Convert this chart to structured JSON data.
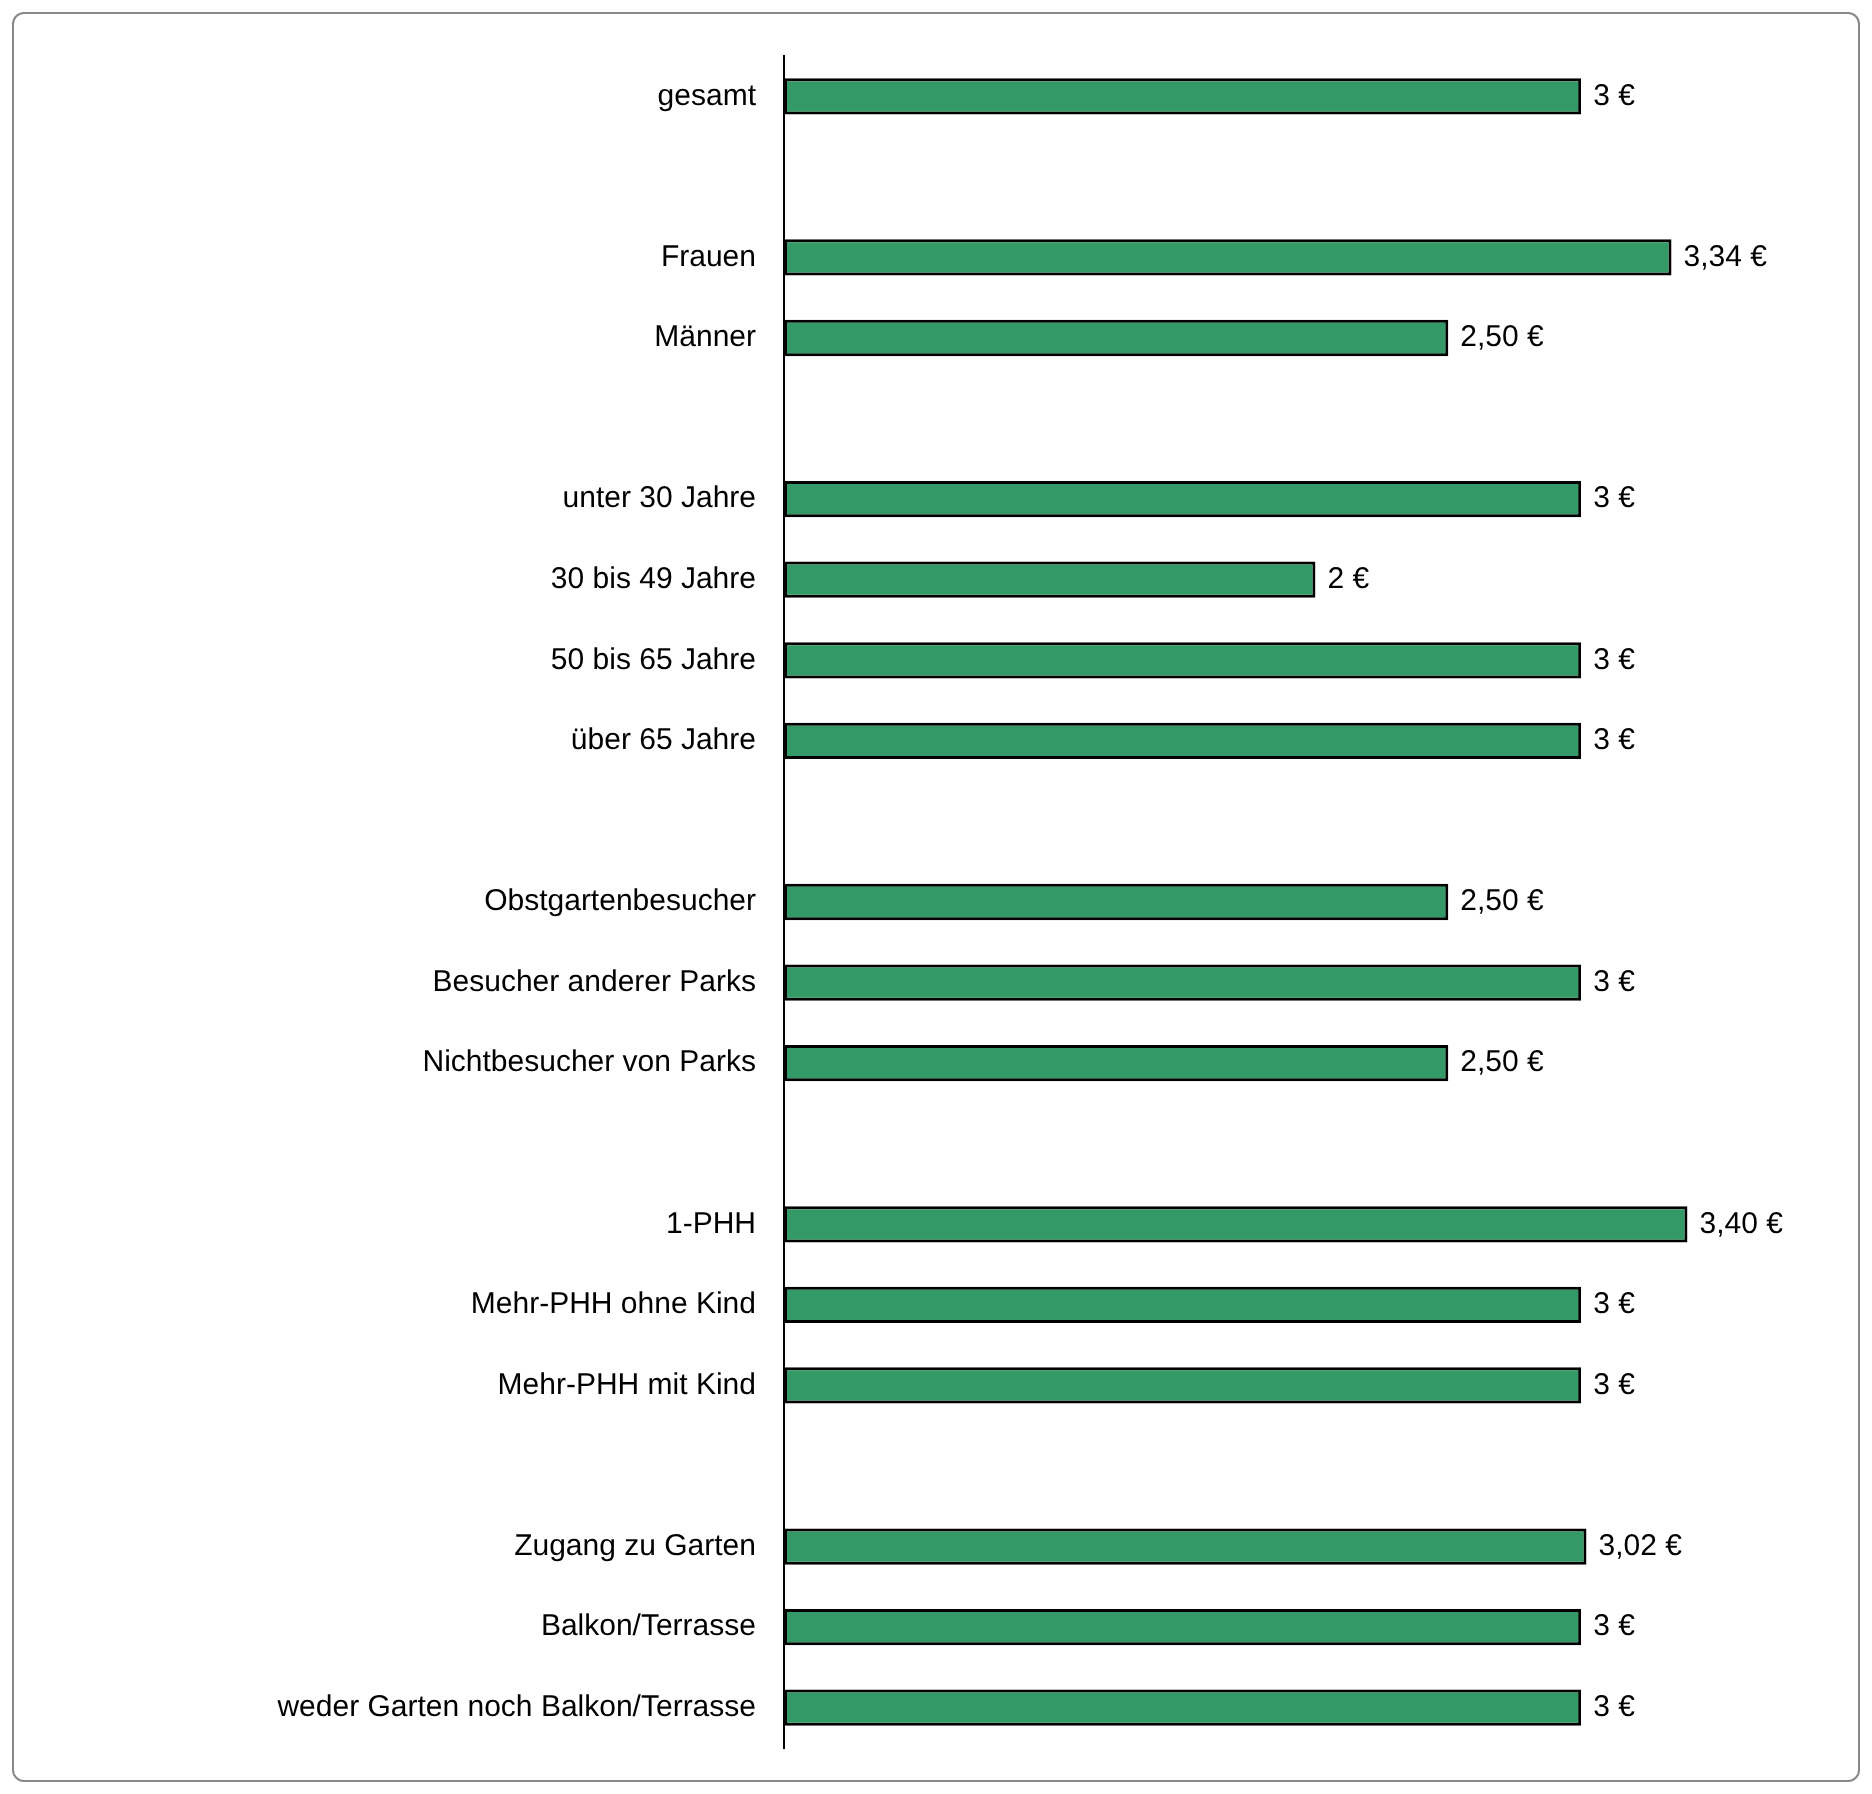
{
  "chart_data": {
    "type": "bar",
    "orientation": "horizontal",
    "categories": [
      "gesamt",
      null,
      "Frauen",
      "Männer",
      null,
      "unter 30 Jahre",
      "30 bis 49 Jahre",
      "50 bis 65 Jahre",
      "über 65 Jahre",
      null,
      "Obstgartenbesucher",
      "Besucher anderer Parks",
      "Nichtbesucher von Parks",
      null,
      "1-PHH",
      "Mehr-PHH ohne Kind",
      "Mehr-PHH mit Kind",
      null,
      "Zugang zu Garten",
      "Balkon/Terrasse",
      "weder Garten noch Balkon/Terrasse"
    ],
    "values": [
      3,
      null,
      3.34,
      2.5,
      null,
      3,
      2,
      3,
      3,
      null,
      2.5,
      3,
      2.5,
      null,
      3.4,
      3,
      3,
      null,
      3.02,
      3,
      3
    ],
    "value_labels": [
      "3 €",
      null,
      "3,34 €",
      "2,50 €",
      null,
      "3 €",
      "2 €",
      "3 €",
      "3 €",
      null,
      "2,50 €",
      "3 €",
      "2,50 €",
      null,
      "3,40 €",
      "3 €",
      "3 €",
      null,
      "3,02 €",
      "3 €",
      "3 €"
    ],
    "color": "#339966",
    "grid": false,
    "legend": false,
    "tick_labels": "y"
  }
}
